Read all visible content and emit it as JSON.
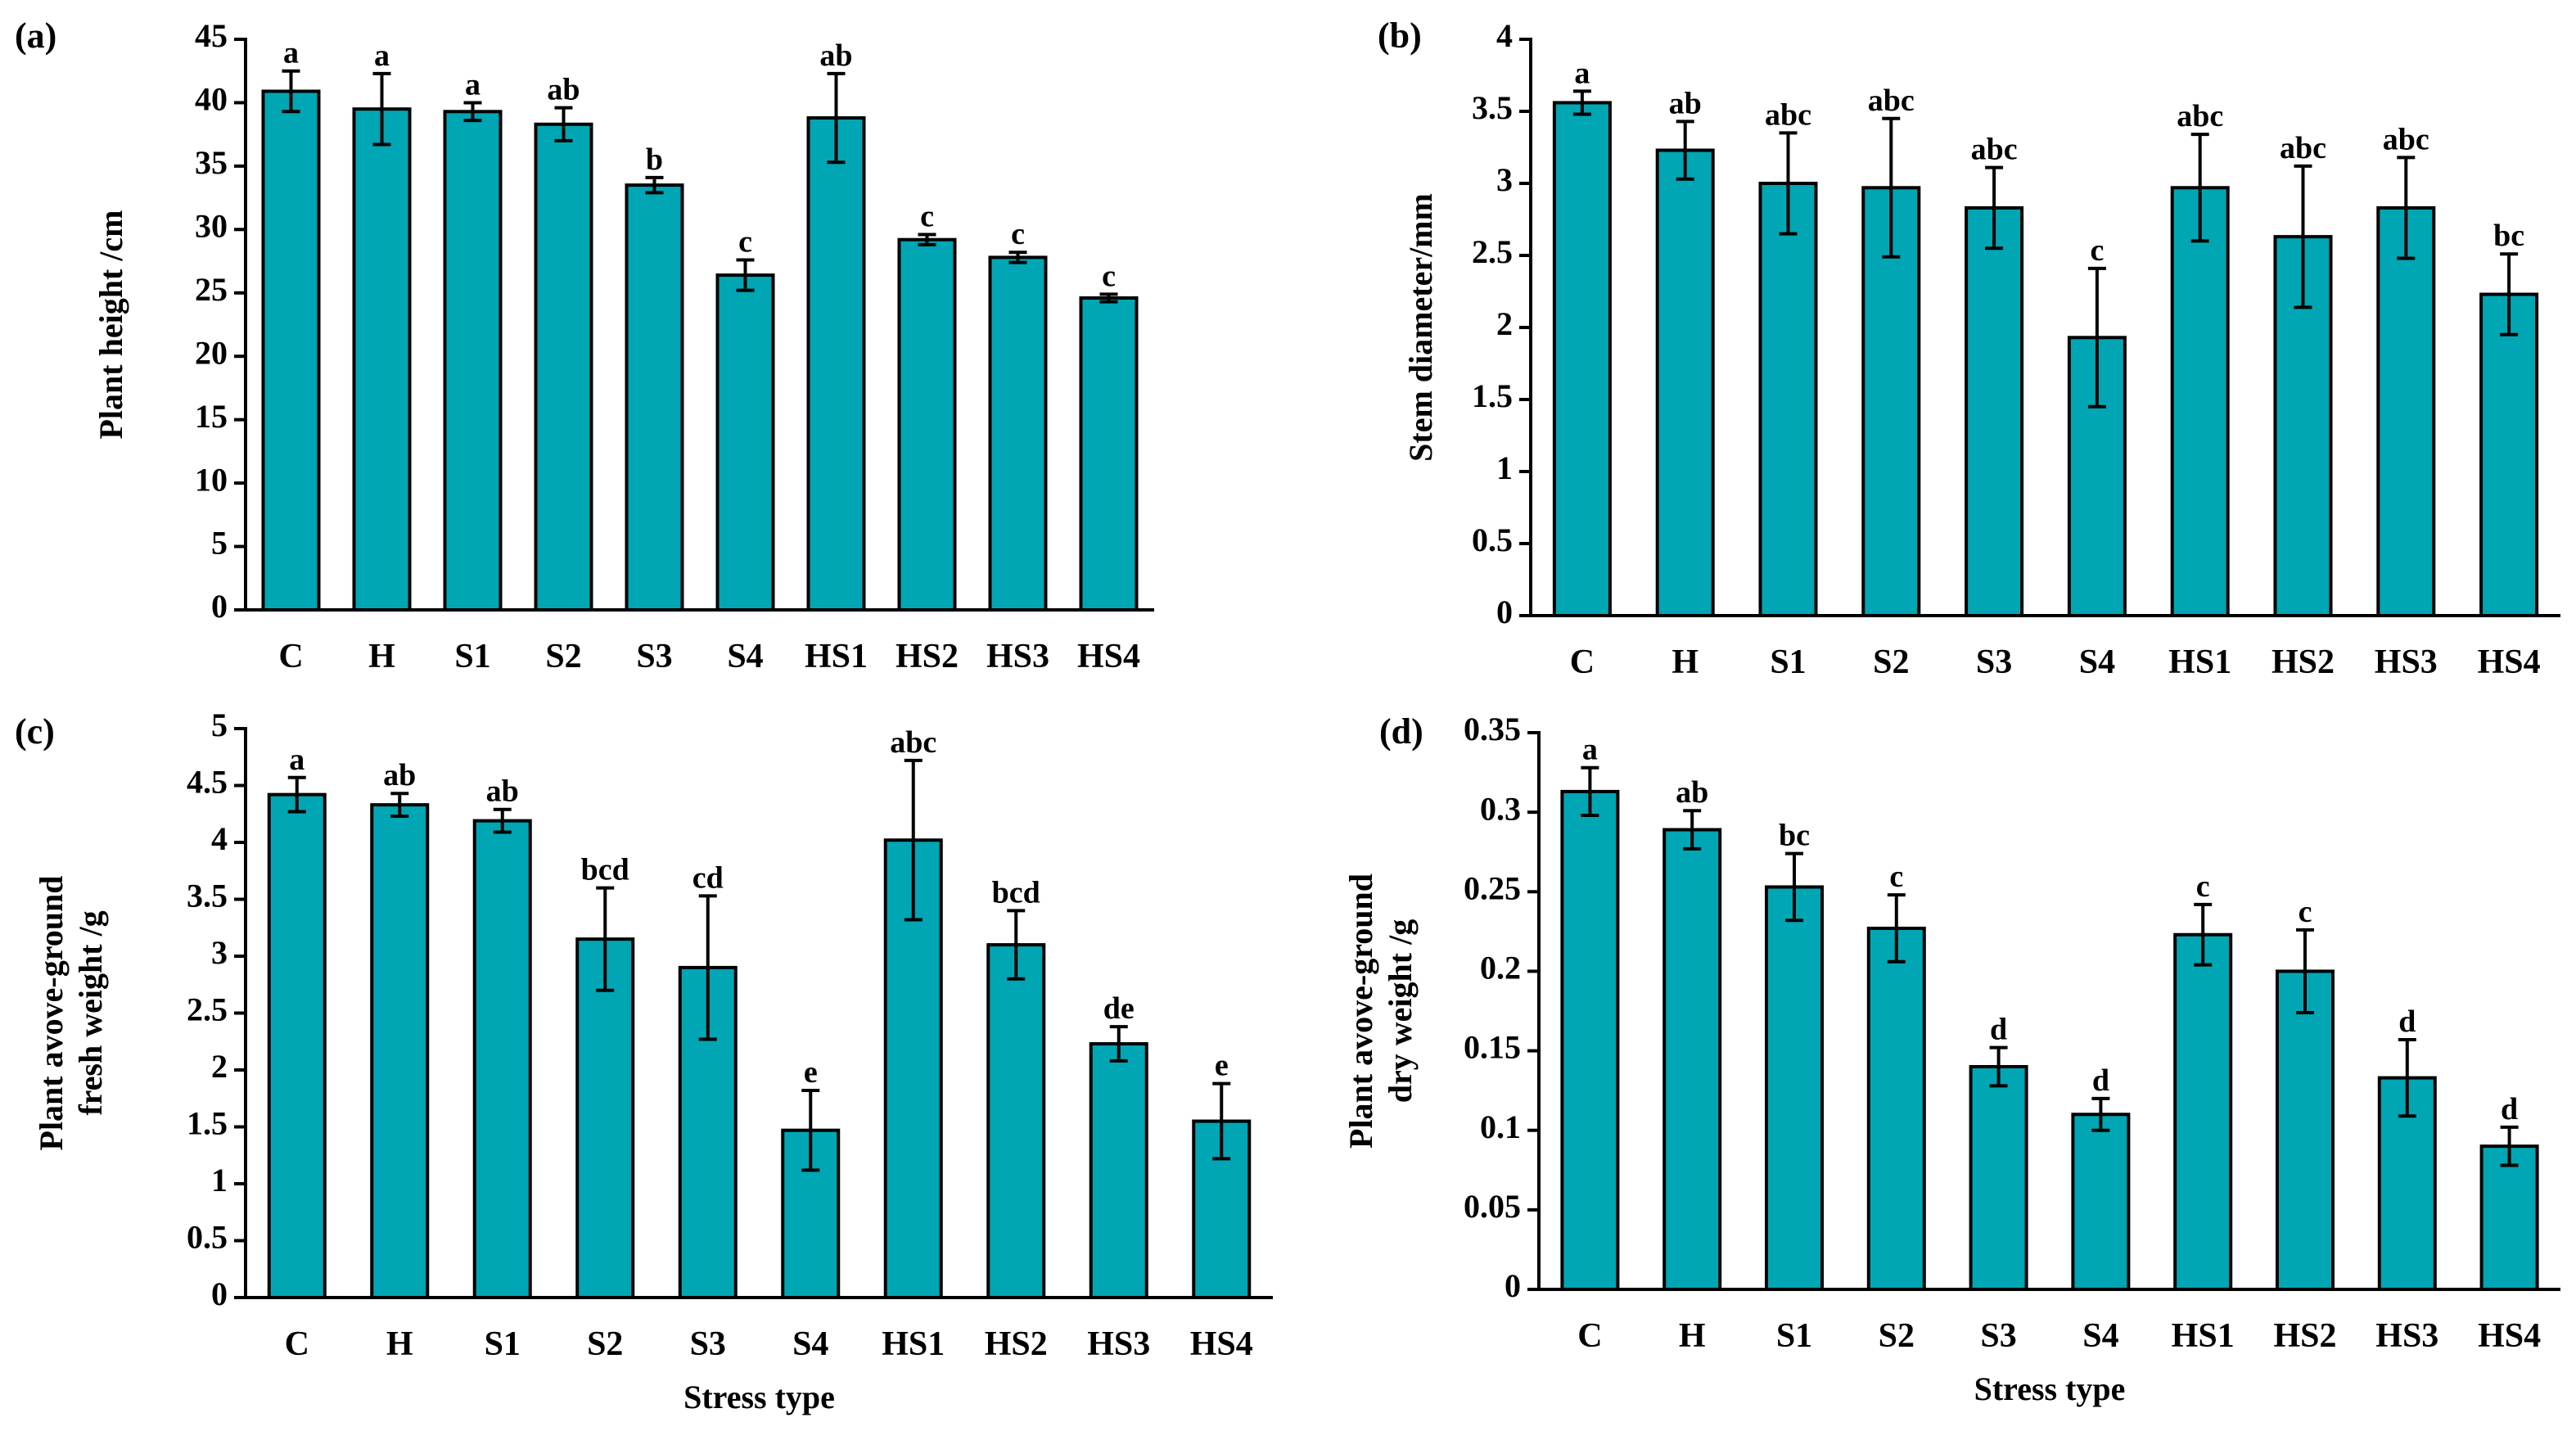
{
  "bar_color": "#00A6B4",
  "axis_color": "#000000",
  "chart_data": [
    {
      "type": "bar",
      "panel": "(a)",
      "categories": [
        "C",
        "H",
        "S1",
        "S2",
        "S3",
        "S4",
        "HS1",
        "HS2",
        "HS3",
        "HS4"
      ],
      "values": [
        40.9,
        39.5,
        39.3,
        38.3,
        33.5,
        26.4,
        38.8,
        29.2,
        27.8,
        24.6
      ],
      "errors": [
        1.6,
        2.8,
        0.7,
        1.3,
        0.6,
        1.2,
        3.5,
        0.4,
        0.4,
        0.3
      ],
      "significance": [
        "a",
        "a",
        "a",
        "ab",
        "b",
        "c",
        "ab",
        "c",
        "c",
        "c"
      ],
      "title": "",
      "xlabel": "",
      "ylabel": "Plant height /cm",
      "ylim": [
        0,
        45
      ],
      "yticks": [
        0,
        5,
        10,
        15,
        20,
        25,
        30,
        35,
        40,
        45
      ],
      "ytick_labels": [
        "0",
        "5",
        "10",
        "15",
        "20",
        "25",
        "30",
        "35",
        "40",
        "45"
      ]
    },
    {
      "type": "bar",
      "panel": "(b)",
      "categories": [
        "C",
        "H",
        "S1",
        "S2",
        "S3",
        "S4",
        "HS1",
        "HS2",
        "HS3",
        "HS4"
      ],
      "values": [
        3.56,
        3.23,
        3.0,
        2.97,
        2.83,
        1.93,
        2.97,
        2.63,
        2.83,
        2.23
      ],
      "errors": [
        0.08,
        0.2,
        0.35,
        0.48,
        0.28,
        0.48,
        0.37,
        0.49,
        0.35,
        0.28
      ],
      "significance": [
        "a",
        "ab",
        "abc",
        "abc",
        "abc",
        "c",
        "abc",
        "abc",
        "abc",
        "bc"
      ],
      "title": "",
      "xlabel": "",
      "ylabel": "Stem diameter/mm",
      "ylim": [
        0,
        4
      ],
      "yticks": [
        0,
        0.5,
        1,
        1.5,
        2,
        2.5,
        3,
        3.5,
        4
      ],
      "ytick_labels": [
        "0",
        "0.5",
        "1",
        "1.5",
        "2",
        "2.5",
        "3",
        "3.5",
        "4"
      ]
    },
    {
      "type": "bar",
      "panel": "(c)",
      "categories": [
        "C",
        "H",
        "S1",
        "S2",
        "S3",
        "S4",
        "HS1",
        "HS2",
        "HS3",
        "HS4"
      ],
      "values": [
        4.42,
        4.33,
        4.19,
        3.15,
        2.9,
        1.47,
        4.02,
        3.1,
        2.23,
        1.55
      ],
      "errors": [
        0.15,
        0.1,
        0.1,
        0.45,
        0.63,
        0.35,
        0.7,
        0.3,
        0.15,
        0.33
      ],
      "significance": [
        "a",
        "ab",
        "ab",
        "bcd",
        "cd",
        "e",
        "abc",
        "bcd",
        "de",
        "e"
      ],
      "title": "",
      "xlabel": "Stress type",
      "ylabel": "Plant avove-ground fresh weight /g",
      "ylabel_lines": [
        "Plant avove-ground",
        "fresh weight /g"
      ],
      "ylim": [
        0,
        5
      ],
      "yticks": [
        0,
        0.5,
        1,
        1.5,
        2,
        2.5,
        3,
        3.5,
        4,
        4.5,
        5
      ],
      "ytick_labels": [
        "0",
        "0.5",
        "1",
        "1.5",
        "2",
        "2.5",
        "3",
        "3.5",
        "4",
        "4.5",
        "5"
      ]
    },
    {
      "type": "bar",
      "panel": "(d)",
      "categories": [
        "C",
        "H",
        "S1",
        "S2",
        "S3",
        "S4",
        "HS1",
        "HS2",
        "HS3",
        "HS4"
      ],
      "values": [
        0.313,
        0.289,
        0.253,
        0.227,
        0.14,
        0.11,
        0.223,
        0.2,
        0.133,
        0.09
      ],
      "errors": [
        0.015,
        0.012,
        0.021,
        0.021,
        0.012,
        0.01,
        0.019,
        0.026,
        0.024,
        0.012
      ],
      "significance": [
        "a",
        "ab",
        "bc",
        "c",
        "d",
        "d",
        "c",
        "c",
        "d",
        "d"
      ],
      "title": "",
      "xlabel": "Stress type",
      "ylabel": "Plant avove-ground dry weight /g",
      "ylabel_lines": [
        "Plant avove-ground",
        "dry weight /g"
      ],
      "ylim": [
        0,
        0.35
      ],
      "yticks": [
        0,
        0.05,
        0.1,
        0.15,
        0.2,
        0.25,
        0.3,
        0.35
      ],
      "ytick_labels": [
        "0",
        "0.05",
        "0.1",
        "0.15",
        "0.2",
        "0.25",
        "0.3",
        "0.35"
      ]
    }
  ]
}
